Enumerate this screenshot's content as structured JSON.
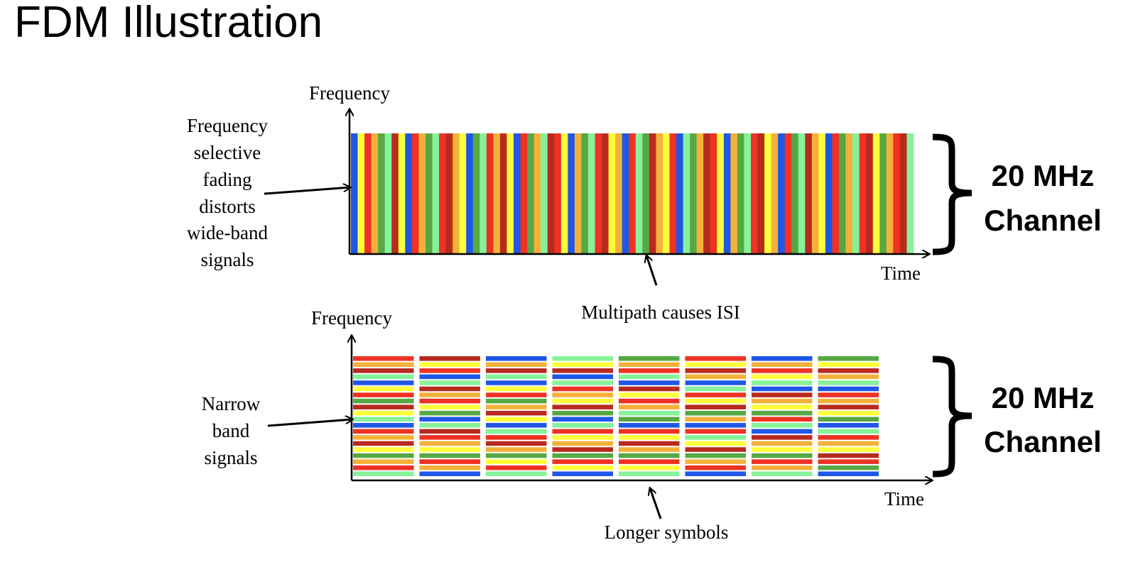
{
  "title": "FDM Illustration",
  "colors": {
    "blue": "#1f57e6",
    "yellow": "#ffff3b",
    "red": "#ee3224",
    "orange": "#f3b13a",
    "green": "#56a844",
    "light_green": "#86f29a",
    "dark_red": "#b82a1f",
    "axis": "#000000"
  },
  "top_panel": {
    "y_axis_label": "Frequency",
    "x_axis_label": "Time",
    "left_annotation": [
      "Frequency",
      "selective",
      "fading",
      "distorts",
      "wide-band",
      "signals"
    ],
    "bottom_annotation": "Multipath causes ISI",
    "bracket_label": [
      "20 MHz",
      "Channel"
    ],
    "stripe_colors": [
      "blue",
      "yellow",
      "red",
      "orange",
      "green",
      "light_green",
      "dark_red",
      "yellow",
      "blue",
      "red",
      "orange",
      "green",
      "light_green",
      "red",
      "dark_red",
      "orange",
      "yellow",
      "blue",
      "green",
      "light_green",
      "red",
      "orange",
      "dark_red",
      "yellow",
      "blue",
      "red",
      "green",
      "orange",
      "light_green",
      "dark_red",
      "red",
      "yellow",
      "blue",
      "orange",
      "green",
      "light_green",
      "red",
      "dark_red",
      "yellow",
      "orange",
      "blue",
      "red",
      "light_green",
      "green",
      "dark_red",
      "orange",
      "yellow",
      "red",
      "blue",
      "light_green",
      "green",
      "orange",
      "dark_red",
      "red",
      "yellow",
      "blue",
      "orange",
      "green",
      "light_green",
      "red",
      "dark_red",
      "yellow",
      "orange",
      "blue",
      "red",
      "green",
      "light_green",
      "dark_red",
      "orange",
      "yellow",
      "blue",
      "red",
      "green",
      "orange",
      "light_green",
      "red",
      "dark_red",
      "yellow",
      "green",
      "orange",
      "red",
      "dark_red",
      "light_green"
    ]
  },
  "bottom_panel": {
    "y_axis_label": "Frequency",
    "x_axis_label": "Time",
    "left_annotation": [
      "Narrow",
      "band",
      "signals"
    ],
    "bottom_annotation": "Longer symbols",
    "bracket_label": [
      "20 MHz",
      "Channel"
    ],
    "symbol_columns": [
      [
        "red",
        "orange",
        "dark_red",
        "light_green",
        "blue",
        "yellow",
        "red",
        "green",
        "dark_red",
        "yellow",
        "light_green",
        "blue",
        "red",
        "orange",
        "dark_red",
        "yellow",
        "green",
        "orange",
        "red",
        "light_green"
      ],
      [
        "dark_red",
        "yellow",
        "red",
        "blue",
        "light_green",
        "dark_red",
        "orange",
        "red",
        "yellow",
        "green",
        "blue",
        "light_green",
        "dark_red",
        "red",
        "orange",
        "yellow",
        "green",
        "red",
        "orange",
        "blue"
      ],
      [
        "blue",
        "orange",
        "dark_red",
        "light_green",
        "blue",
        "yellow",
        "red",
        "green",
        "orange",
        "dark_red",
        "yellow",
        "blue",
        "light_green",
        "red",
        "dark_red",
        "orange",
        "green",
        "yellow",
        "red",
        "light_green"
      ],
      [
        "light_green",
        "yellow",
        "dark_red",
        "blue",
        "light_green",
        "red",
        "orange",
        "yellow",
        "dark_red",
        "green",
        "blue",
        "light_green",
        "red",
        "yellow",
        "orange",
        "dark_red",
        "green",
        "red",
        "yellow",
        "blue"
      ],
      [
        "green",
        "orange",
        "red",
        "light_green",
        "blue",
        "dark_red",
        "yellow",
        "red",
        "orange",
        "light_green",
        "green",
        "blue",
        "red",
        "yellow",
        "dark_red",
        "orange",
        "green",
        "red",
        "yellow",
        "light_green"
      ],
      [
        "red",
        "yellow",
        "dark_red",
        "orange",
        "blue",
        "light_green",
        "red",
        "yellow",
        "dark_red",
        "green",
        "orange",
        "blue",
        "red",
        "light_green",
        "yellow",
        "dark_red",
        "green",
        "orange",
        "red",
        "blue"
      ],
      [
        "blue",
        "orange",
        "red",
        "yellow",
        "light_green",
        "blue",
        "dark_red",
        "orange",
        "yellow",
        "green",
        "red",
        "light_green",
        "blue",
        "dark_red",
        "orange",
        "yellow",
        "green",
        "red",
        "orange",
        "light_green"
      ],
      [
        "green",
        "yellow",
        "dark_red",
        "orange",
        "light_green",
        "blue",
        "red",
        "orange",
        "dark_red",
        "yellow",
        "green",
        "blue",
        "light_green",
        "red",
        "orange",
        "yellow",
        "dark_red",
        "red",
        "green",
        "blue"
      ]
    ]
  }
}
